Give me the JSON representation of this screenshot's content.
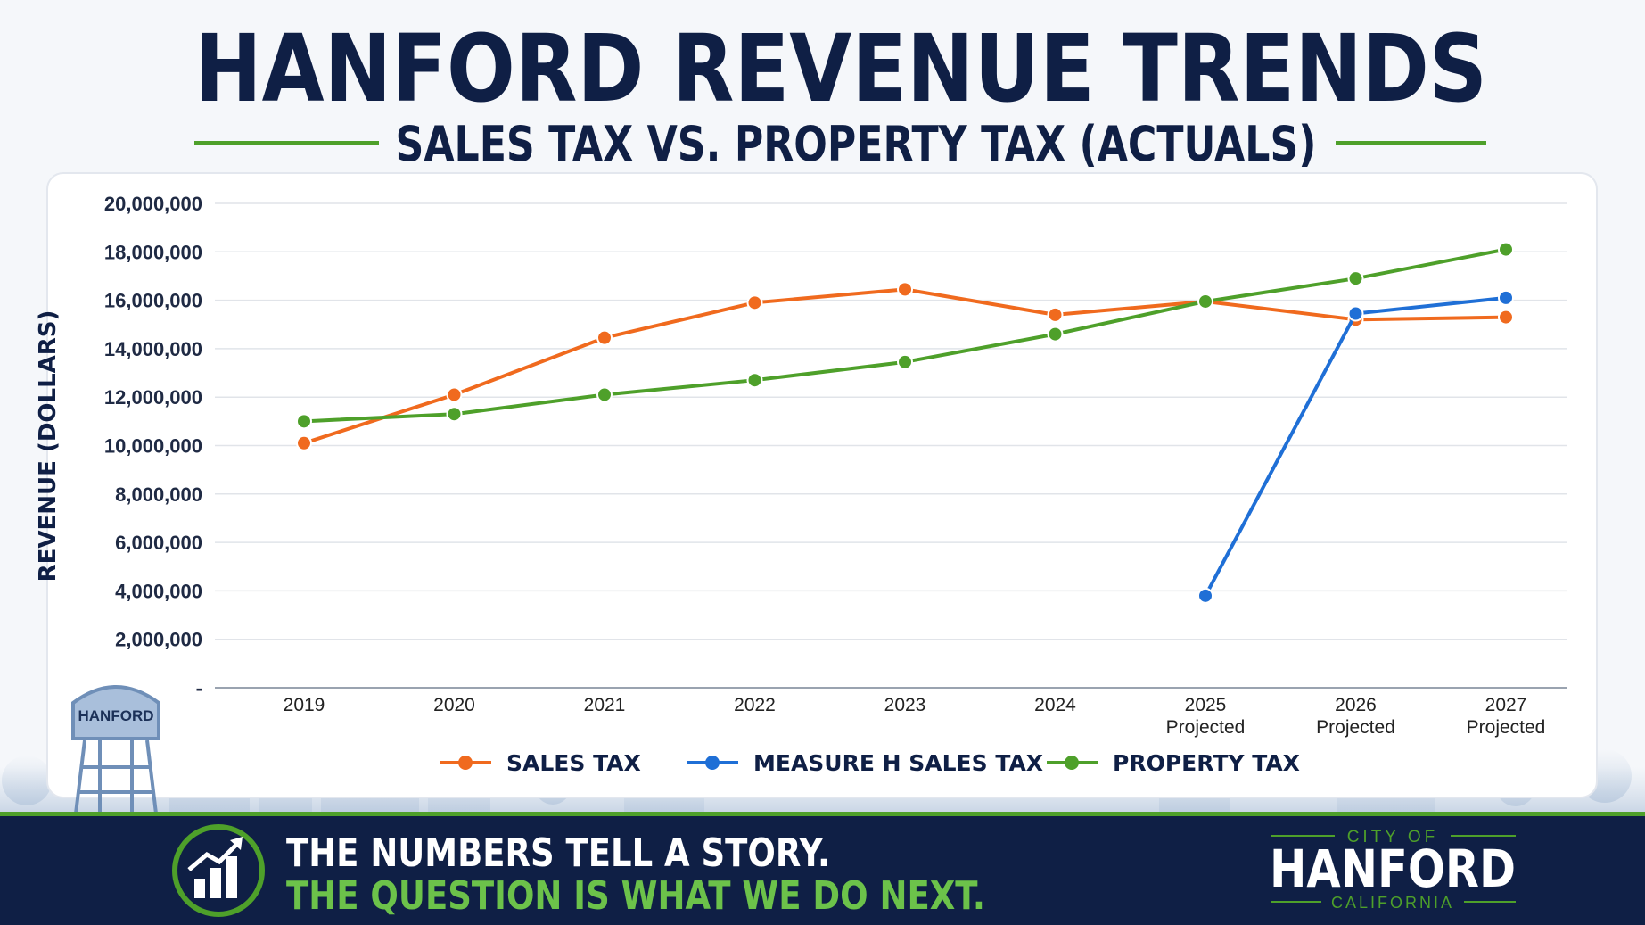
{
  "chart_data": {
    "type": "line",
    "title": "HANFORD REVENUE TRENDS",
    "subtitle": "SALES TAX VS. PROPERTY TAX (ACTUALS)",
    "y_label": "REVENUE (DOLLARS)",
    "categories": [
      "2019",
      "2020",
      "2021",
      "2022",
      "2023",
      "2024",
      "2025 Projected",
      "2026 Projected",
      "2027 Projected"
    ],
    "series": [
      {
        "name": "SALES TAX",
        "color": "#f06a1e",
        "values": [
          10100000,
          12100000,
          14450000,
          15900000,
          16450000,
          15400000,
          15950000,
          15200000,
          15300000
        ]
      },
      {
        "name": "MEASURE H SALES TAX",
        "color": "#1f6fd6",
        "values": [
          null,
          null,
          null,
          null,
          null,
          null,
          3800000,
          15450000,
          16100000
        ]
      },
      {
        "name": "PROPERTY TAX",
        "color": "#4ea02a",
        "values": [
          11000000,
          11300000,
          12100000,
          12700000,
          13450000,
          14600000,
          15950000,
          16900000,
          18100000
        ]
      }
    ],
    "ylim": [
      0,
      20000000
    ],
    "yticks": [
      {
        "value": 0,
        "label": "-"
      },
      {
        "value": 2000000,
        "label": "2,000,000"
      },
      {
        "value": 4000000,
        "label": "4,000,000"
      },
      {
        "value": 6000000,
        "label": "6,000,000"
      },
      {
        "value": 8000000,
        "label": "8,000,000"
      },
      {
        "value": 10000000,
        "label": "10,000,000"
      },
      {
        "value": 12000000,
        "label": "12,000,000"
      },
      {
        "value": 14000000,
        "label": "14,000,000"
      },
      {
        "value": 16000000,
        "label": "16,000,000"
      },
      {
        "value": 18000000,
        "label": "18,000,000"
      },
      {
        "value": 20000000,
        "label": "20,000,000"
      }
    ],
    "grid": true,
    "legend": "bottom"
  },
  "illustration": {
    "tower_label": "HANFORD"
  },
  "banner": {
    "line1": "THE NUMBERS TELL A STORY.",
    "line2": "THE QUESTION IS WHAT WE DO NEXT."
  },
  "logo": {
    "top": "CITY OF",
    "name": "HANFORD",
    "bottom": "CALIFORNIA"
  }
}
